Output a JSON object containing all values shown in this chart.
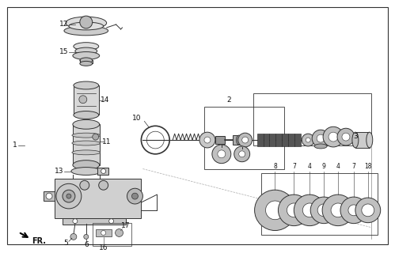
{
  "bg_color": "#ffffff",
  "line_color": "#333333",
  "gray_light": "#cccccc",
  "gray_mid": "#aaaaaa",
  "gray_dark": "#888888",
  "white": "#ffffff",
  "black": "#111111"
}
